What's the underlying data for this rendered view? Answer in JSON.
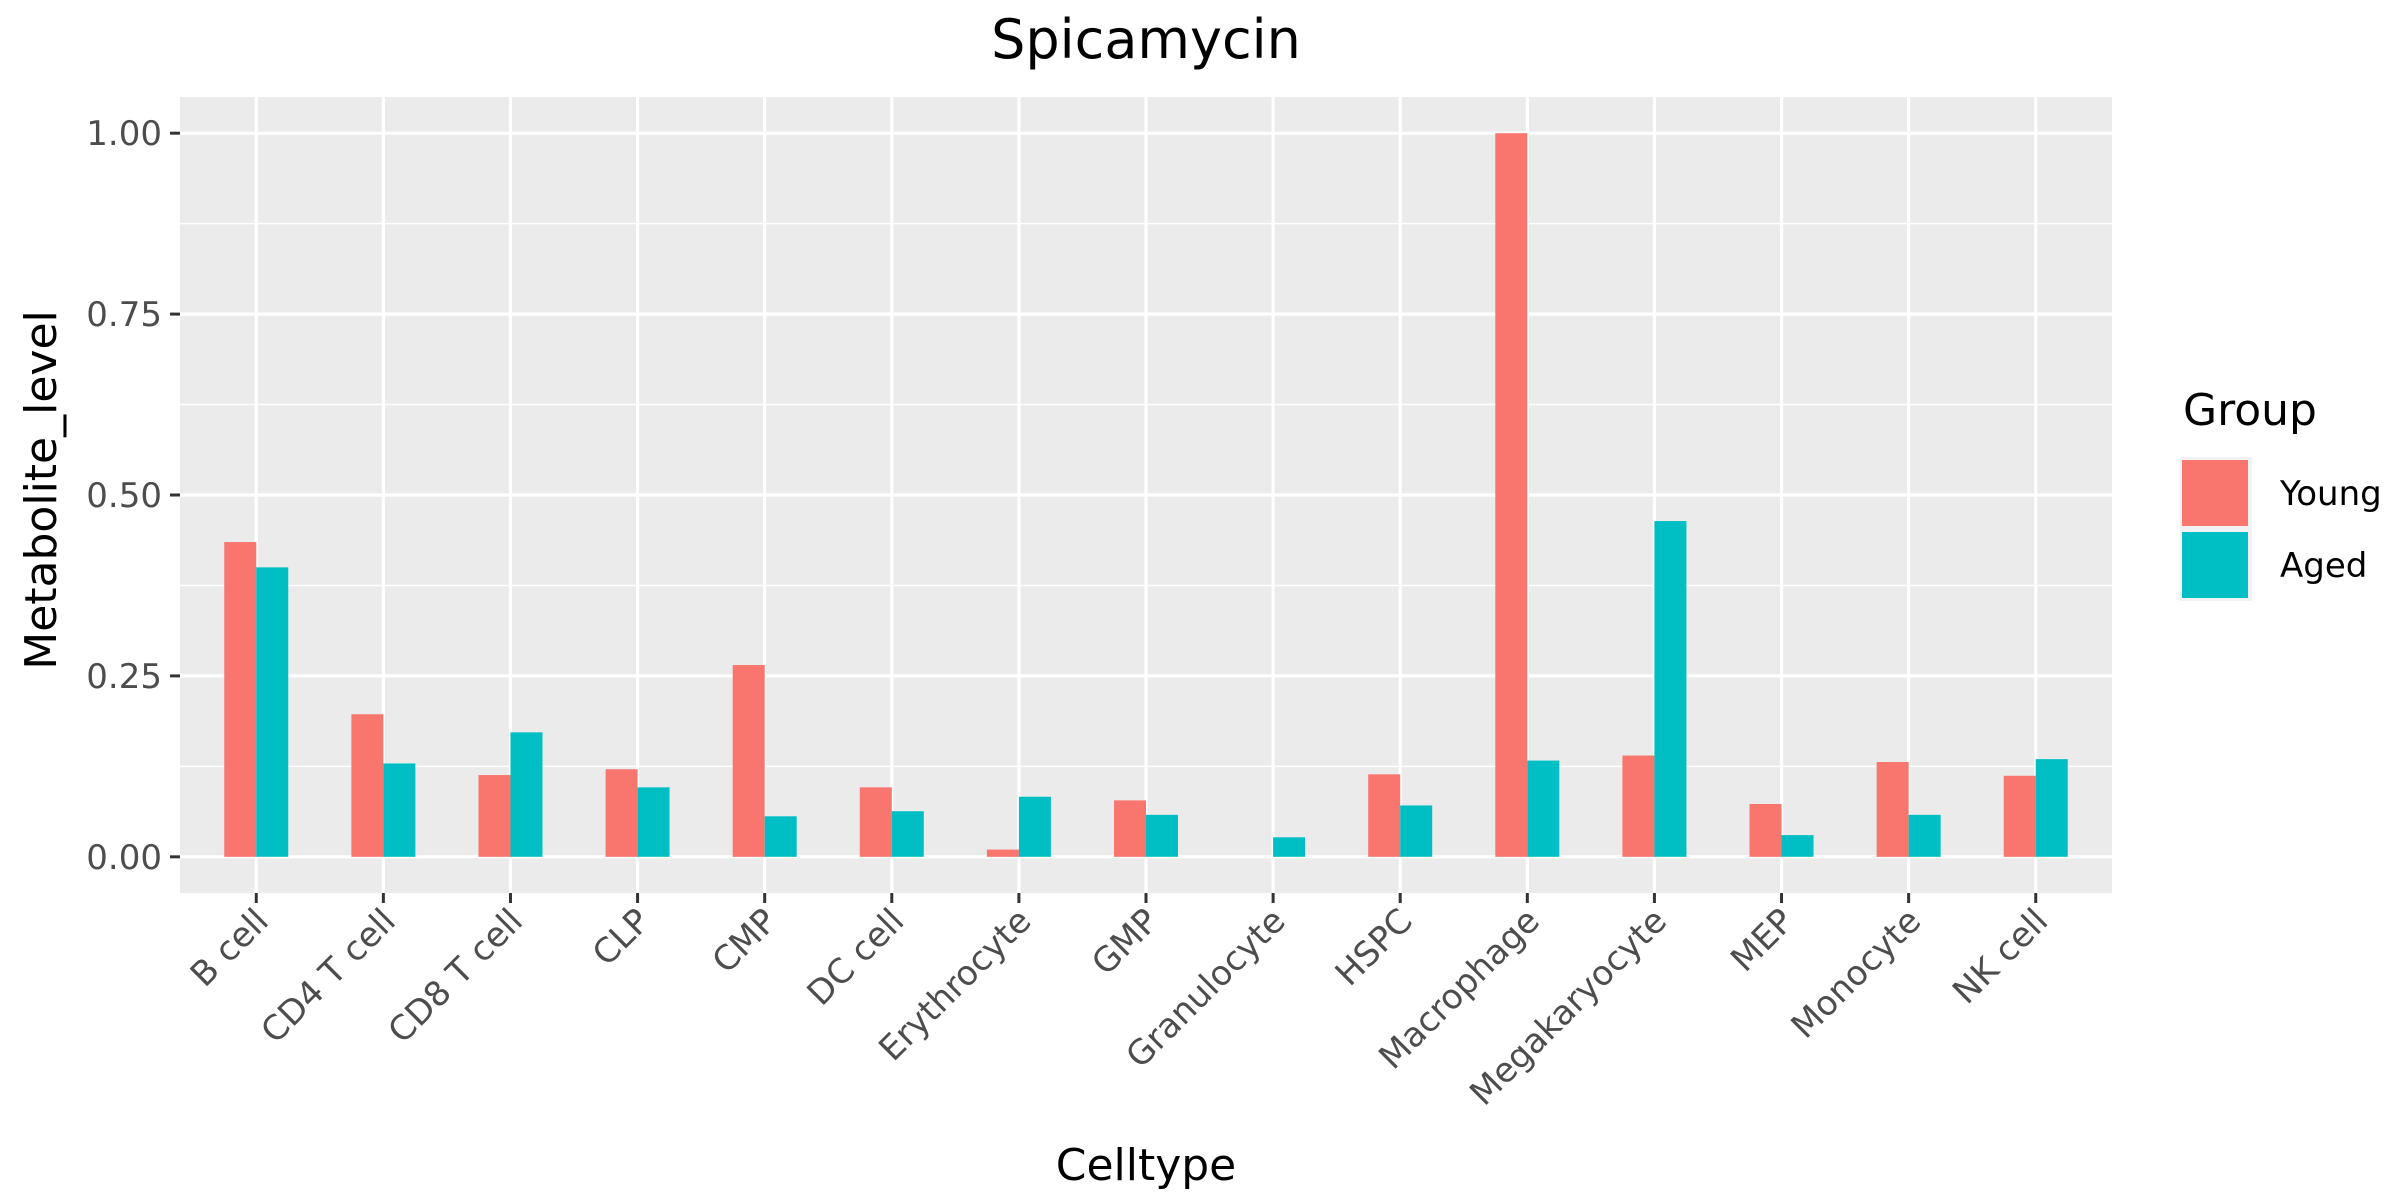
{
  "chart_data": {
    "type": "bar",
    "title": "Spicamycin",
    "xlabel": "Celltype",
    "ylabel": "Metabolite_level",
    "ylim": [
      -0.05,
      1.05
    ],
    "yticks": [
      0.0,
      0.25,
      0.5,
      0.75,
      1.0
    ],
    "ytick_labels": [
      "0.00",
      "0.25",
      "0.50",
      "0.75",
      "1.00"
    ],
    "grid": true,
    "legend_position": "right",
    "legend_title": "Group",
    "categories": [
      "B cell",
      "CD4 T cell",
      "CD8 T cell",
      "CLP",
      "CMP",
      "DC cell",
      "Erythrocyte",
      "GMP",
      "Granulocyte",
      "HSPC",
      "Macrophage",
      "Megakaryocyte",
      "MEP",
      "Monocyte",
      "NK cell"
    ],
    "series": [
      {
        "name": "Young",
        "color": "#F8766D",
        "values": [
          0.435,
          0.197,
          0.113,
          0.121,
          0.265,
          0.096,
          0.01,
          0.078,
          0.0,
          0.114,
          1.0,
          0.14,
          0.073,
          0.131,
          0.112
        ]
      },
      {
        "name": "Aged",
        "color": "#00BFC4",
        "values": [
          0.4,
          0.129,
          0.172,
          0.096,
          0.056,
          0.063,
          0.083,
          0.058,
          0.027,
          0.071,
          0.133,
          0.464,
          0.03,
          0.058,
          0.135
        ]
      }
    ]
  }
}
